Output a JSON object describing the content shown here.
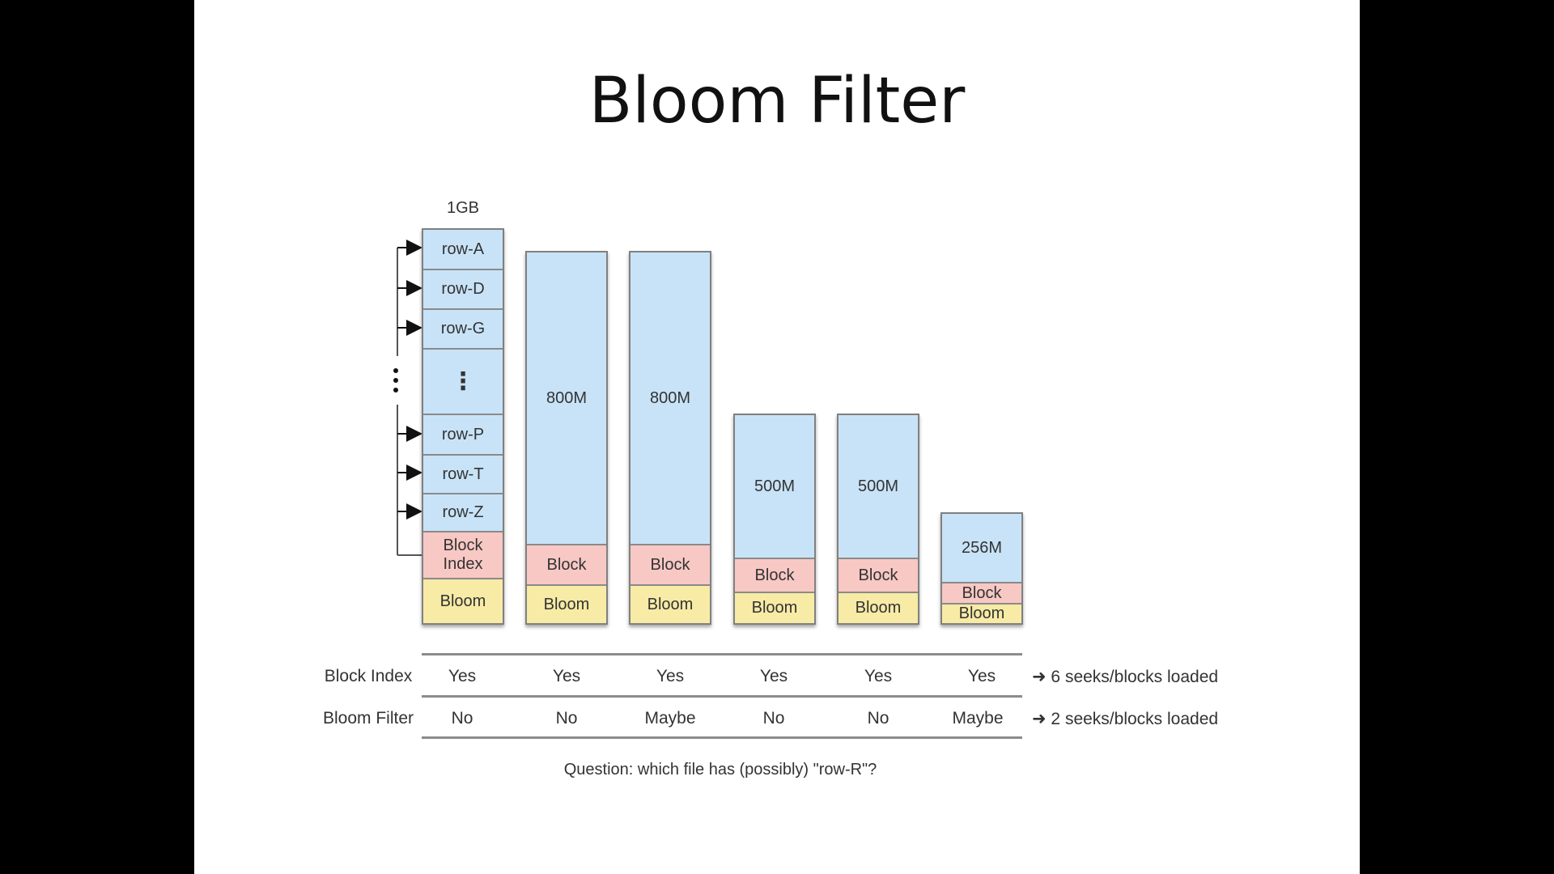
{
  "title": "Bloom Filter",
  "first_file_size": "1GB",
  "first_file_rows": [
    "row-A",
    "row-D",
    "row-G",
    "⋮",
    "row-P",
    "row-T",
    "row-Z"
  ],
  "first_file_block": "Block\nIndex",
  "ellipsis": "⋮",
  "files": [
    {
      "size": "800M",
      "block": "Block",
      "bloom": "Bloom"
    },
    {
      "size": "800M",
      "block": "Block",
      "bloom": "Bloom"
    },
    {
      "size": "500M",
      "block": "Block",
      "bloom": "Bloom"
    },
    {
      "size": "500M",
      "block": "Block",
      "bloom": "Bloom"
    },
    {
      "size": "256M",
      "block": "Block",
      "bloom": "Bloom"
    }
  ],
  "bloom_label": "Bloom",
  "table": {
    "rows": [
      {
        "label": "Block Index",
        "values": [
          "Yes",
          "Yes",
          "Yes",
          "Yes",
          "Yes",
          "Yes"
        ],
        "result": "➜ 6 seeks/blocks loaded"
      },
      {
        "label": "Bloom Filter",
        "values": [
          "No",
          "No",
          "Maybe",
          "No",
          "No",
          "Maybe"
        ],
        "result": "➜ 2 seeks/blocks loaded"
      }
    ]
  },
  "question": "Question: which file has (possibly) \"row-R\"?",
  "colors": {
    "data": "#c8e3f7",
    "block": "#f7c8c4",
    "bloom": "#f7eba5"
  }
}
